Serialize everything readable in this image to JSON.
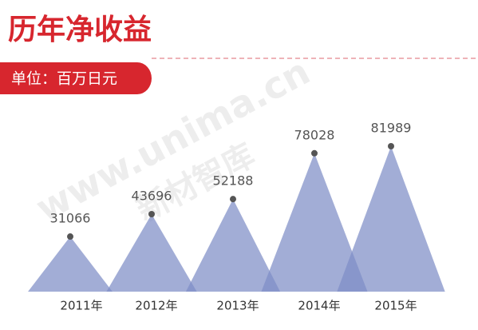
{
  "chart_data": {
    "type": "peak",
    "title": "历年净收益",
    "subtitle": "单位：百万日元",
    "watermark": [
      "www.unima.cn",
      "新材智库"
    ],
    "categories": [
      "2011年",
      "2012年",
      "2013年",
      "2014年",
      "2015年"
    ],
    "values": [
      31066,
      43696,
      52188,
      78028,
      81989
    ],
    "color": "#7e8ec6",
    "title_color": "#d7262e"
  }
}
